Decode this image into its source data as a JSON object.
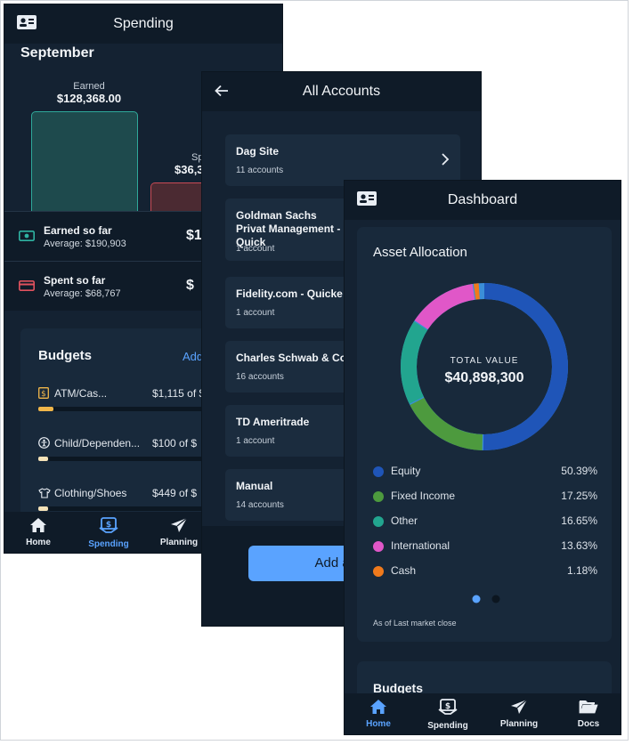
{
  "spending": {
    "title": "Spending",
    "month": "September",
    "earned_label": "Earned",
    "earned_value": "$128,368.00",
    "spent_label": "Sp",
    "spent_value": "$36,3",
    "earned_row": {
      "title": "Earned so far",
      "average": "Average: $190,903",
      "amount": "$1"
    },
    "spent_row": {
      "title": "Spent so far",
      "average": "Average: $68,767",
      "amount": "$"
    },
    "budgets_title": "Budgets",
    "budgets_add": "Add",
    "budget_items": [
      {
        "name": "ATM/Cas...",
        "value": "$1,115 of $1",
        "progress": 0.06,
        "color": "#f0b64a",
        "icon": "dollar-icon"
      },
      {
        "name": "Child/Dependen...",
        "value": "$100 of $",
        "progress": 0.04,
        "color": "#f4e2b8",
        "icon": "child-icon"
      },
      {
        "name": "Clothing/Shoes",
        "value": "$449 of $",
        "progress": 0.04,
        "color": "#f4e2b8",
        "icon": "shirt-icon"
      }
    ],
    "tabs": [
      {
        "label": "Home",
        "icon": "home-icon",
        "active": false
      },
      {
        "label": "Spending",
        "icon": "spending-icon",
        "active": true
      },
      {
        "label": "Planning",
        "icon": "planning-icon",
        "active": false
      }
    ]
  },
  "accounts": {
    "title": "All Accounts",
    "items": [
      {
        "name": "Dag Site",
        "count": "11 accounts"
      },
      {
        "name": "Goldman Sachs Privat Management - Quick",
        "count": "1 account"
      },
      {
        "name": "Fidelity.com - Quicke",
        "count": "1 account"
      },
      {
        "name": "Charles Schwab & Co",
        "count": "16 accounts"
      },
      {
        "name": "TD Ameritrade",
        "count": "1 account"
      },
      {
        "name": "Manual",
        "count": "14 accounts"
      }
    ],
    "add_button": "Add an A"
  },
  "dashboard": {
    "title": "Dashboard",
    "card_title": "Asset Allocation",
    "total_label": "TOTAL VALUE",
    "total_value": "$40,898,300",
    "as_of": "As of Last market close",
    "budgets_title": "Budgets",
    "tabs": [
      {
        "label": "Home",
        "icon": "home-icon",
        "active": true
      },
      {
        "label": "Spending",
        "icon": "spending-icon",
        "active": false
      },
      {
        "label": "Planning",
        "icon": "planning-icon",
        "active": false
      },
      {
        "label": "Docs",
        "icon": "folder-icon",
        "active": false
      }
    ]
  },
  "chart_data": {
    "type": "pie",
    "categories": [
      "Equity",
      "Fixed Income",
      "Other",
      "International",
      "Cash"
    ],
    "values": [
      50.39,
      17.25,
      16.65,
      13.63,
      1.18
    ],
    "value_labels": [
      "50.39%",
      "17.25%",
      "16.65%",
      "13.63%",
      "1.18%"
    ],
    "colors": [
      "#1f55b8",
      "#4d9a3e",
      "#22a58f",
      "#e057c8",
      "#f07a1c"
    ],
    "remainder_color": "#3b8ed8",
    "title": "Asset Allocation",
    "legend": "bottom"
  }
}
